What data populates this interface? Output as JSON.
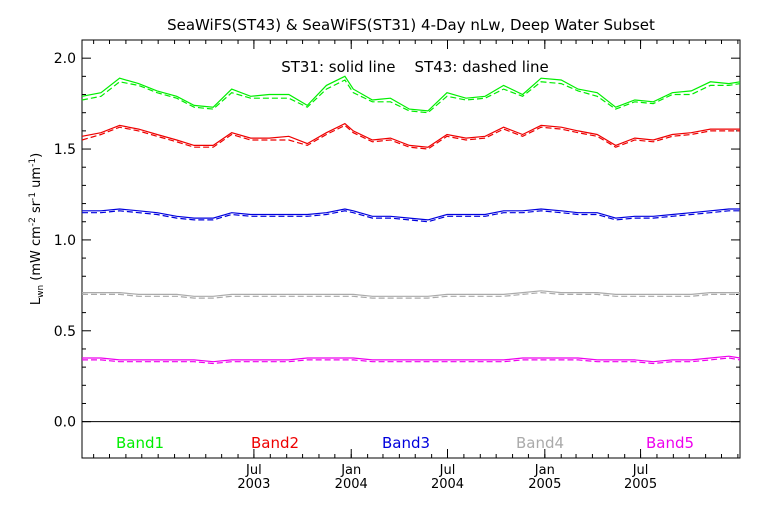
{
  "chart_data": {
    "type": "line",
    "title": "SeaWiFS(ST43) & SeaWiFS(ST31) 4-Day nLw, Deep Water Subset",
    "annotation": "ST31: solid line    ST43: dashed line",
    "ylabel": {
      "base": "L",
      "sub": "wn",
      "units": " (mW cm",
      "exp1": "-2",
      "mid1": " sr",
      "exp2": "-1",
      "mid2": " um",
      "exp3": "-1",
      "end": ")"
    },
    "xlim": [
      "2002-08-10",
      "2006-01-05"
    ],
    "ylim": [
      -0.2,
      2.1
    ],
    "yticks": [
      0.0,
      0.5,
      1.0,
      1.5,
      2.0
    ],
    "ytick_labels": [
      "0.0",
      "0.5",
      "1.0",
      "1.5",
      "2.0"
    ],
    "xticks": [
      {
        "date": "2003-07-01",
        "month": "Jul",
        "year": "2003"
      },
      {
        "date": "2004-01-01",
        "month": "Jan",
        "year": "2004"
      },
      {
        "date": "2004-07-01",
        "month": "Jul",
        "year": "2004"
      },
      {
        "date": "2005-01-01",
        "month": "Jan",
        "year": "2005"
      },
      {
        "date": "2005-07-01",
        "month": "Jul",
        "year": "2005"
      }
    ],
    "x": [
      "2002-08-10",
      "2002-09-15",
      "2002-10-20",
      "2002-11-25",
      "2002-12-30",
      "2003-02-05",
      "2003-03-10",
      "2003-04-15",
      "2003-05-20",
      "2003-06-25",
      "2003-07-30",
      "2003-09-05",
      "2003-10-10",
      "2003-11-15",
      "2003-12-20",
      "2004-01-05",
      "2004-02-10",
      "2004-03-15",
      "2004-04-20",
      "2004-05-25",
      "2004-06-30",
      "2004-08-05",
      "2004-09-10",
      "2004-10-15",
      "2004-11-20",
      "2004-12-25",
      "2005-02-01",
      "2005-03-05",
      "2005-04-10",
      "2005-05-15",
      "2005-06-20",
      "2005-07-25",
      "2005-08-30",
      "2005-10-05",
      "2005-11-10",
      "2005-12-15",
      "2006-01-05"
    ],
    "series": [
      {
        "name": "Band1",
        "color": "#00ee00",
        "solid": [
          1.79,
          1.81,
          1.89,
          1.86,
          1.82,
          1.79,
          1.74,
          1.73,
          1.83,
          1.79,
          1.8,
          1.8,
          1.74,
          1.85,
          1.9,
          1.83,
          1.77,
          1.78,
          1.72,
          1.71,
          1.81,
          1.78,
          1.79,
          1.85,
          1.8,
          1.89,
          1.88,
          1.83,
          1.81,
          1.73,
          1.77,
          1.76,
          1.81,
          1.82,
          1.87,
          1.86,
          1.87
        ],
        "dashed": [
          1.77,
          1.79,
          1.87,
          1.85,
          1.81,
          1.78,
          1.73,
          1.72,
          1.81,
          1.78,
          1.78,
          1.78,
          1.73,
          1.83,
          1.88,
          1.81,
          1.76,
          1.76,
          1.71,
          1.7,
          1.79,
          1.77,
          1.78,
          1.83,
          1.79,
          1.87,
          1.86,
          1.82,
          1.79,
          1.72,
          1.76,
          1.75,
          1.8,
          1.8,
          1.85,
          1.85,
          1.86
        ]
      },
      {
        "name": "Band2",
        "color": "#ee0000",
        "solid": [
          1.57,
          1.59,
          1.63,
          1.61,
          1.58,
          1.55,
          1.52,
          1.52,
          1.59,
          1.56,
          1.56,
          1.57,
          1.53,
          1.59,
          1.64,
          1.6,
          1.55,
          1.56,
          1.52,
          1.51,
          1.58,
          1.56,
          1.57,
          1.62,
          1.58,
          1.63,
          1.62,
          1.6,
          1.58,
          1.52,
          1.56,
          1.55,
          1.58,
          1.59,
          1.61,
          1.61,
          1.61
        ],
        "dashed": [
          1.55,
          1.58,
          1.62,
          1.6,
          1.57,
          1.54,
          1.51,
          1.51,
          1.58,
          1.55,
          1.55,
          1.55,
          1.52,
          1.58,
          1.63,
          1.59,
          1.54,
          1.55,
          1.51,
          1.5,
          1.57,
          1.55,
          1.56,
          1.61,
          1.57,
          1.62,
          1.61,
          1.59,
          1.57,
          1.51,
          1.55,
          1.54,
          1.57,
          1.58,
          1.6,
          1.6,
          1.6
        ]
      },
      {
        "name": "Band3",
        "color": "#0000dd",
        "solid": [
          1.16,
          1.16,
          1.17,
          1.16,
          1.15,
          1.13,
          1.12,
          1.12,
          1.15,
          1.14,
          1.14,
          1.14,
          1.14,
          1.15,
          1.17,
          1.16,
          1.13,
          1.13,
          1.12,
          1.11,
          1.14,
          1.14,
          1.14,
          1.16,
          1.16,
          1.17,
          1.16,
          1.15,
          1.15,
          1.12,
          1.13,
          1.13,
          1.14,
          1.15,
          1.16,
          1.17,
          1.17
        ],
        "dashed": [
          1.15,
          1.15,
          1.16,
          1.15,
          1.14,
          1.12,
          1.11,
          1.11,
          1.14,
          1.13,
          1.13,
          1.13,
          1.13,
          1.14,
          1.16,
          1.15,
          1.12,
          1.12,
          1.11,
          1.1,
          1.13,
          1.13,
          1.13,
          1.15,
          1.15,
          1.16,
          1.15,
          1.14,
          1.14,
          1.11,
          1.12,
          1.12,
          1.13,
          1.14,
          1.15,
          1.16,
          1.16
        ]
      },
      {
        "name": "Band4",
        "color": "#aaaaaa",
        "solid": [
          0.71,
          0.71,
          0.71,
          0.7,
          0.7,
          0.7,
          0.69,
          0.69,
          0.7,
          0.7,
          0.7,
          0.7,
          0.7,
          0.7,
          0.7,
          0.7,
          0.69,
          0.69,
          0.69,
          0.69,
          0.7,
          0.7,
          0.7,
          0.7,
          0.71,
          0.72,
          0.71,
          0.71,
          0.71,
          0.7,
          0.7,
          0.7,
          0.7,
          0.7,
          0.71,
          0.71,
          0.71
        ],
        "dashed": [
          0.7,
          0.7,
          0.7,
          0.69,
          0.69,
          0.69,
          0.68,
          0.68,
          0.69,
          0.69,
          0.69,
          0.69,
          0.69,
          0.69,
          0.69,
          0.69,
          0.68,
          0.68,
          0.68,
          0.68,
          0.69,
          0.69,
          0.69,
          0.69,
          0.7,
          0.71,
          0.7,
          0.7,
          0.7,
          0.69,
          0.69,
          0.69,
          0.69,
          0.69,
          0.7,
          0.7,
          0.7
        ]
      },
      {
        "name": "Band5",
        "color": "#ee00ee",
        "solid": [
          0.35,
          0.35,
          0.34,
          0.34,
          0.34,
          0.34,
          0.34,
          0.33,
          0.34,
          0.34,
          0.34,
          0.34,
          0.35,
          0.35,
          0.35,
          0.35,
          0.34,
          0.34,
          0.34,
          0.34,
          0.34,
          0.34,
          0.34,
          0.34,
          0.35,
          0.35,
          0.35,
          0.35,
          0.34,
          0.34,
          0.34,
          0.33,
          0.34,
          0.34,
          0.35,
          0.36,
          0.35
        ],
        "dashed": [
          0.34,
          0.34,
          0.33,
          0.33,
          0.33,
          0.33,
          0.33,
          0.32,
          0.33,
          0.33,
          0.33,
          0.33,
          0.34,
          0.34,
          0.34,
          0.34,
          0.33,
          0.33,
          0.33,
          0.33,
          0.33,
          0.33,
          0.33,
          0.33,
          0.34,
          0.34,
          0.34,
          0.34,
          0.33,
          0.33,
          0.33,
          0.32,
          0.33,
          0.33,
          0.34,
          0.35,
          0.34
        ]
      }
    ],
    "legend": {
      "placement": "bottom-inside"
    },
    "grid": false
  }
}
